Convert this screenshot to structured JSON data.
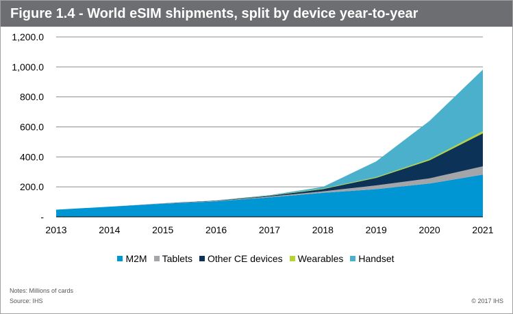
{
  "figure": {
    "title": "Figure 1.4 - World eSIM shipments, split by device year-to-year",
    "notes": "Notes:  Millions of cards",
    "source": "Source:  IHS",
    "copyright": "© 2017 IHS"
  },
  "chart_data": {
    "type": "area",
    "stacked": true,
    "x": [
      "2013",
      "2014",
      "2015",
      "2016",
      "2017",
      "2018",
      "2019",
      "2020",
      "2021"
    ],
    "ylim": [
      0,
      1200
    ],
    "ytick_values": [
      0,
      200,
      400,
      600,
      800,
      1000,
      1200
    ],
    "ytick_labels": [
      "-",
      "200.0",
      "400.0",
      "600.0",
      "800.0",
      "1,000.0",
      "1,200.0"
    ],
    "grid": true,
    "legend_position": "bottom",
    "series": [
      {
        "name": "M2M",
        "color": "#0095d3",
        "values": [
          48,
          68,
          88,
          103,
          130,
          160,
          185,
          222,
          282
        ]
      },
      {
        "name": "Tablets",
        "color": "#a3a5a8",
        "values": [
          0,
          0,
          2,
          3,
          5,
          10,
          25,
          35,
          55
        ]
      },
      {
        "name": "Other CE devices",
        "color": "#0d3257",
        "values": [
          0,
          0,
          1,
          2,
          5,
          15,
          50,
          120,
          220
        ]
      },
      {
        "name": "Wearables",
        "color": "#b5d334",
        "values": [
          0,
          0,
          0,
          1,
          2,
          3,
          5,
          8,
          15
        ]
      },
      {
        "name": "Handset",
        "color": "#4ab0cb",
        "values": [
          0,
          0,
          0,
          1,
          3,
          12,
          105,
          255,
          410
        ]
      }
    ]
  }
}
